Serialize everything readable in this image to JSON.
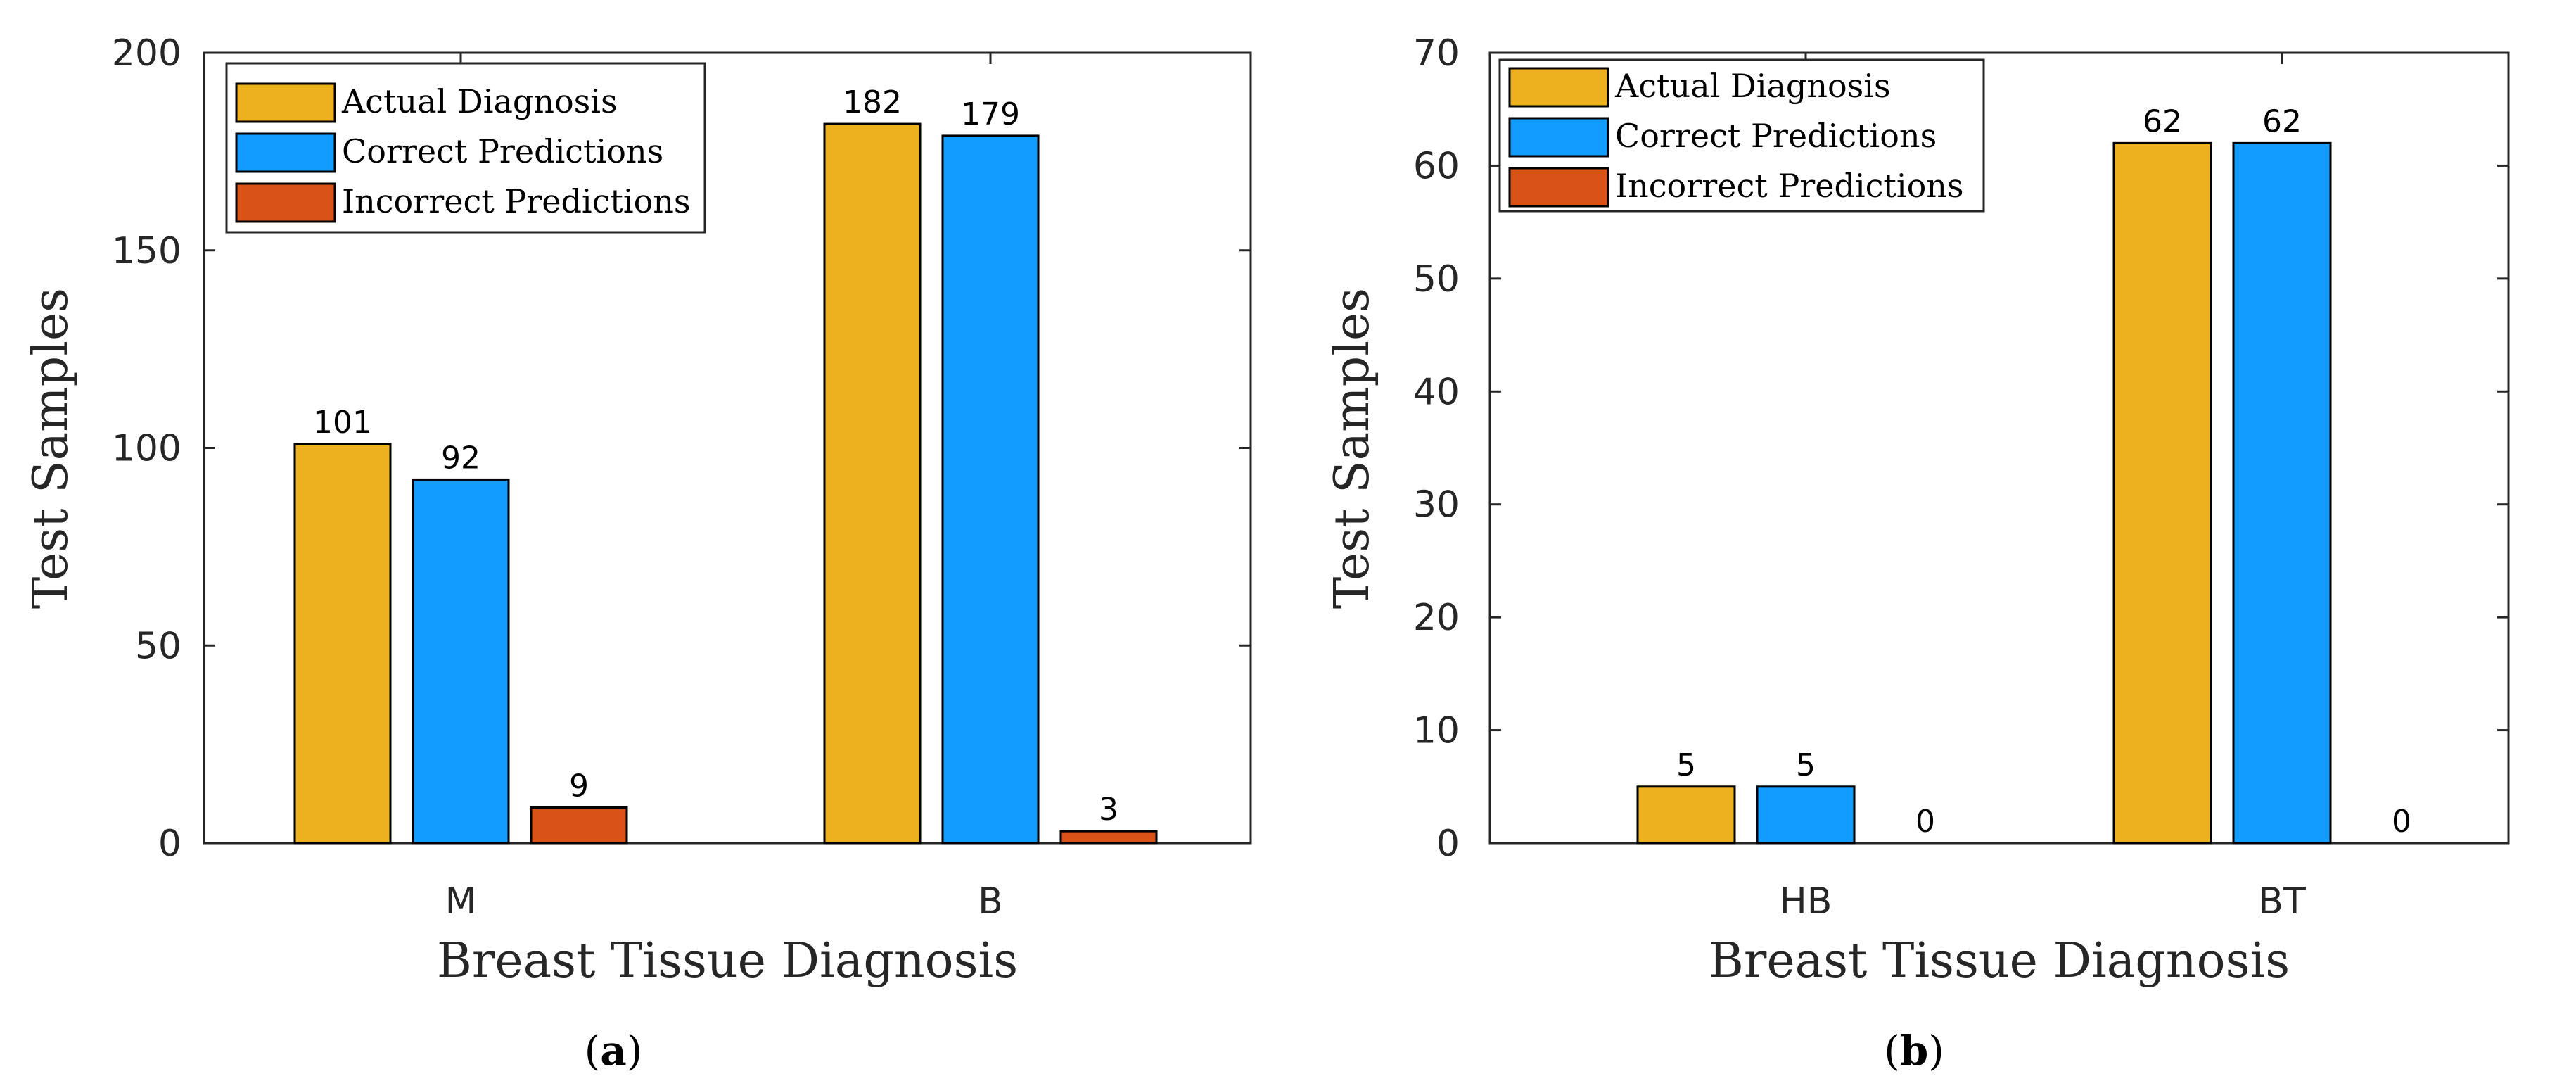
{
  "chart_data": [
    {
      "type": "bar",
      "panel": "a",
      "caption_open": "(",
      "caption_letter": "a",
      "caption_close": ")",
      "categories": [
        "M",
        "B"
      ],
      "series": [
        {
          "name": "Actual Diagnosis",
          "color": "#EDB120",
          "values": [
            101,
            182
          ]
        },
        {
          "name": "Correct Predictions",
          "color": "#129CFF",
          "values": [
            92,
            179
          ]
        },
        {
          "name": "Incorrect Predictions",
          "color": "#D95319",
          "values": [
            9,
            3
          ]
        }
      ],
      "xlabel": "Breast Tissue Diagnosis",
      "ylabel": "Test Samples",
      "ylim": [
        0,
        200
      ],
      "yticks": [
        0,
        50,
        100,
        150,
        200
      ],
      "legend_location": "top-left",
      "grid": false
    },
    {
      "type": "bar",
      "panel": "b",
      "caption_open": "(",
      "caption_letter": "b",
      "caption_close": ")",
      "categories": [
        "HB",
        "BT"
      ],
      "series": [
        {
          "name": "Actual Diagnosis",
          "color": "#EDB120",
          "values": [
            5,
            62
          ]
        },
        {
          "name": "Correct Predictions",
          "color": "#129CFF",
          "values": [
            5,
            62
          ]
        },
        {
          "name": "Incorrect Predictions",
          "color": "#D95319",
          "values": [
            0,
            0
          ]
        }
      ],
      "xlabel": "Breast Tissue Diagnosis",
      "ylabel": "Test Samples",
      "ylim": [
        0,
        70
      ],
      "yticks": [
        0,
        10,
        20,
        30,
        40,
        50,
        60,
        70
      ],
      "legend_location": "top-left",
      "grid": false
    }
  ]
}
